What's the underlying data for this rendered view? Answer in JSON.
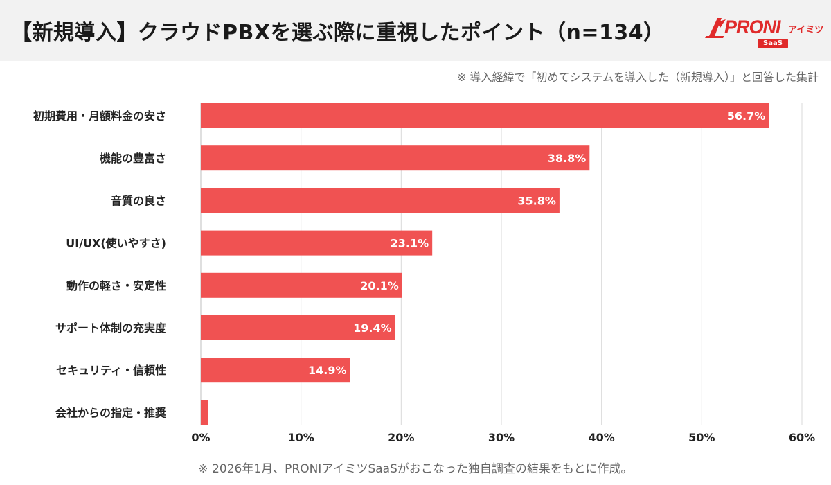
{
  "header": {
    "title": "【新規導入】クラウドPBXを選ぶ際に重視したポイント（n=134）"
  },
  "logo": {
    "word": "PRONI",
    "kana": "アイミツ",
    "badge": "SaaS"
  },
  "note": "※ 導入経緯で「初めてシステムを導入した（新規導入）」と回答した集計",
  "footer": "※ 2026年1月、PRONIアイミツSaaSがおこなった独自調査の結果をもとに作成。",
  "colors": {
    "bar": "#f05252",
    "brand": "#e02a2a",
    "grid": "#d9d9d9"
  },
  "chart_data": {
    "type": "bar",
    "orientation": "horizontal",
    "categories": [
      "初期費用・月額料金の安さ",
      "機能の豊富さ",
      "音質の良さ",
      "UI/UX(使いやすさ)",
      "動作の軽さ・安定性",
      "サポート体制の充実度",
      "セキュリティ・信頼性",
      "会社からの指定・推奨"
    ],
    "values": [
      56.7,
      38.8,
      35.8,
      23.1,
      20.1,
      19.4,
      14.9,
      0.7
    ],
    "data_labels": [
      "56.7%",
      "38.8%",
      "35.8%",
      "23.1%",
      "20.1%",
      "19.4%",
      "14.9%",
      ""
    ],
    "xlim": [
      0,
      60
    ],
    "xticks": [
      0,
      10,
      20,
      30,
      40,
      50,
      60
    ],
    "xtick_labels": [
      "0%",
      "10%",
      "20%",
      "30%",
      "40%",
      "50%",
      "60%"
    ],
    "grid": "vertical",
    "legend": "none"
  }
}
